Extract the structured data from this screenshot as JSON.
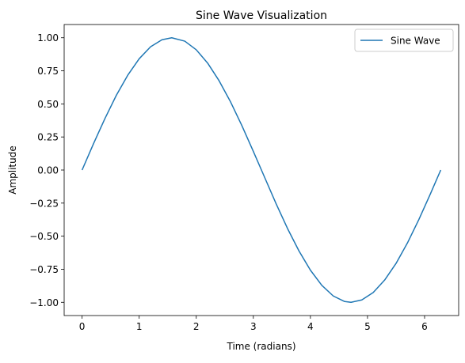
{
  "chart_data": {
    "type": "line",
    "title": "Sine Wave Visualization",
    "xlabel": "Time (radians)",
    "ylabel": "Amplitude",
    "xlim": [
      -0.314,
      6.597
    ],
    "ylim": [
      -1.1,
      1.1
    ],
    "x_ticks": [
      0,
      1,
      2,
      3,
      4,
      5,
      6
    ],
    "x_tick_labels": [
      "0",
      "1",
      "2",
      "3",
      "4",
      "5",
      "6"
    ],
    "y_ticks": [
      -1.0,
      -0.75,
      -0.5,
      -0.25,
      0.0,
      0.25,
      0.5,
      0.75,
      1.0
    ],
    "y_tick_labels": [
      "−1.00",
      "−0.75",
      "−0.50",
      "−0.25",
      "0.00",
      "0.25",
      "0.50",
      "0.75",
      "1.00"
    ],
    "grid": false,
    "legend_position": "top-right",
    "series": [
      {
        "name": "Sine Wave",
        "color": "#1f77b4",
        "x": [
          0.0,
          0.2,
          0.4,
          0.6,
          0.8,
          1.0,
          1.2,
          1.4,
          1.571,
          1.8,
          2.0,
          2.2,
          2.4,
          2.6,
          2.8,
          3.0,
          3.142,
          3.4,
          3.6,
          3.8,
          4.0,
          4.2,
          4.4,
          4.6,
          4.712,
          4.9,
          5.1,
          5.3,
          5.5,
          5.7,
          5.9,
          6.1,
          6.283
        ],
        "y": [
          0.0,
          0.199,
          0.389,
          0.565,
          0.717,
          0.841,
          0.932,
          0.985,
          1.0,
          0.974,
          0.909,
          0.808,
          0.675,
          0.516,
          0.335,
          0.141,
          0.0,
          -0.256,
          -0.443,
          -0.612,
          -0.757,
          -0.872,
          -0.952,
          -0.994,
          -1.0,
          -0.982,
          -0.926,
          -0.832,
          -0.706,
          -0.551,
          -0.374,
          -0.182,
          0.0
        ]
      }
    ]
  }
}
